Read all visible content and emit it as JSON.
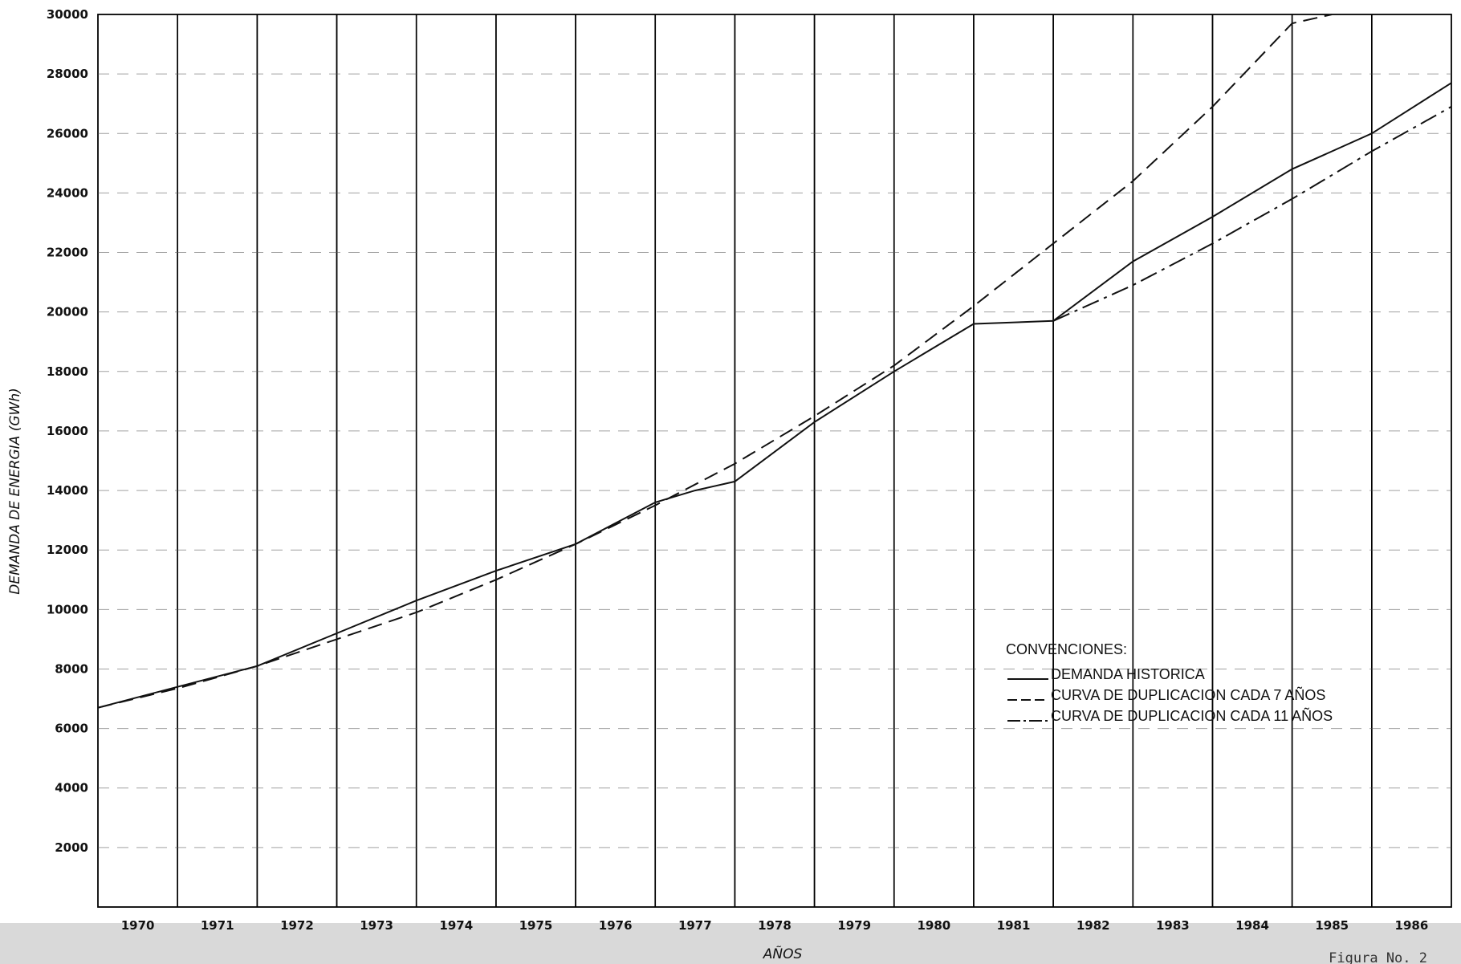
{
  "chart_data": {
    "type": "line",
    "ylabel": "DEMANDA DE ENERGIA (GWh)",
    "xlabel": "AÑOS",
    "ylim": [
      0,
      30000
    ],
    "y_ticks": [
      "2000",
      "4000",
      "6000",
      "8000",
      "10000",
      "12000",
      "14000",
      "16000",
      "18000",
      "20000",
      "22000",
      "24000",
      "26000",
      "28000",
      "30000"
    ],
    "x_ticks": [
      "1970",
      "1971",
      "1972",
      "1973",
      "1974",
      "1975",
      "1976",
      "1977",
      "1978",
      "1979",
      "1980",
      "1981",
      "1982",
      "1983",
      "1984",
      "1985",
      "1986"
    ],
    "x_range": [
      1969.5,
      1986.5
    ],
    "grid": "vertical solid lines between years, dashed horizontal lines at y ticks",
    "legend_title": "CONVENCIONES:",
    "legend_placement": "center-right",
    "series": [
      {
        "name": "DEMANDA HISTORICA",
        "style": "solid",
        "x": [
          1969.5,
          1970.5,
          1971.5,
          1972.5,
          1973.5,
          1974.5,
          1975.5,
          1976.5,
          1977.0,
          1977.5,
          1978.5,
          1979.5,
          1980.5,
          1981.5,
          1982.5,
          1983.5,
          1984.5,
          1985.5,
          1986.5
        ],
        "values": [
          6700,
          7400,
          8100,
          9200,
          10300,
          11300,
          12200,
          13600,
          14000,
          14300,
          16300,
          18000,
          19600,
          19700,
          21700,
          23200,
          24800,
          26000,
          27700
        ]
      },
      {
        "name": "CURVA DE DUPLICACION CADA 7 AÑOS",
        "style": "dashed",
        "x": [
          1969.5,
          1970.5,
          1971.5,
          1972.5,
          1973.5,
          1974.5,
          1975.5,
          1976.5,
          1977.5,
          1978.5,
          1979.5,
          1980.5,
          1981.5,
          1982.5,
          1983.5,
          1984.5,
          1985.0
        ],
        "values": [
          6700,
          7350,
          8100,
          9000,
          9900,
          11000,
          12200,
          13500,
          14900,
          16500,
          18200,
          20200,
          22300,
          24400,
          26900,
          29700,
          30000
        ]
      },
      {
        "name": "CURVA DE DUPLICACION CADA 11 AÑOS",
        "style": "dashdot",
        "x": [
          1981.5,
          1982.5,
          1983.5,
          1984.5,
          1985.5,
          1986.5
        ],
        "values": [
          19700,
          20900,
          22300,
          23800,
          25400,
          26900
        ]
      }
    ]
  },
  "caption": "Figura No. 2",
  "colors": {
    "ink": "#111111",
    "background": "#ffffff",
    "footer_band": "#d9d9d9"
  }
}
